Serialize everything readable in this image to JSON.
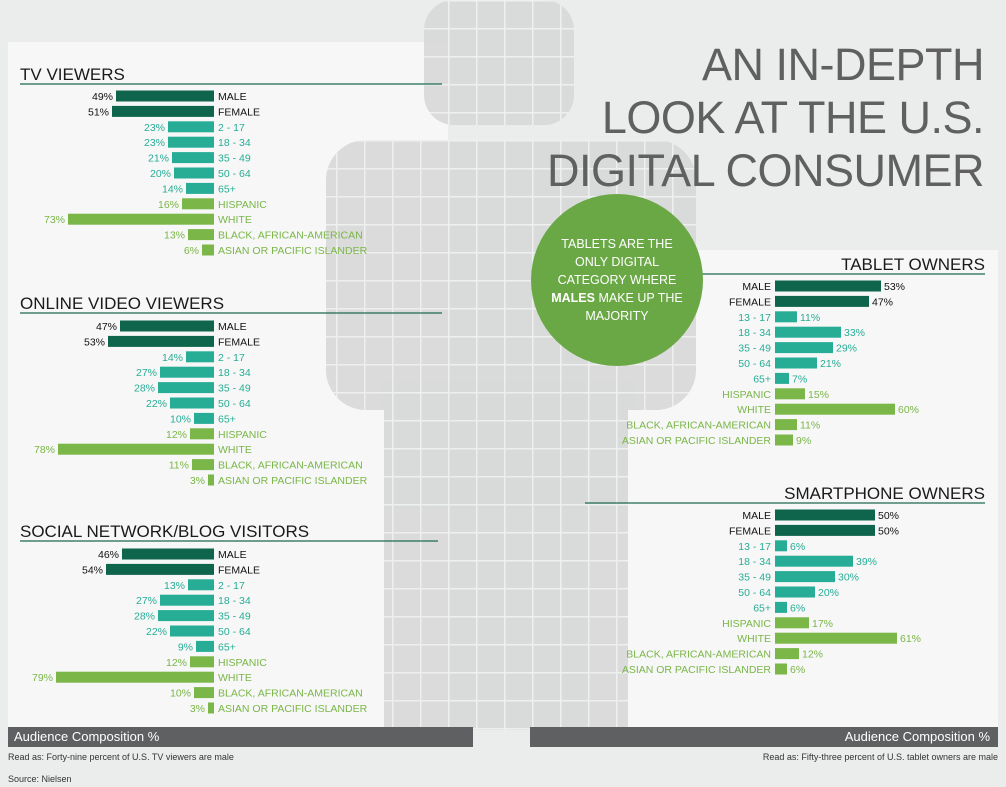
{
  "title_lines": [
    "AN IN-DEPTH",
    "LOOK AT THE U.S.",
    "DIGITAL CONSUMER"
  ],
  "callout": {
    "text_before": "TABLETS ARE THE ONLY DIGITAL CATEGORY WHERE",
    "emphasis": "MALES",
    "text_after": "MAKE UP THE MAJORITY"
  },
  "footer": {
    "left_label": "Audience Composition %",
    "right_label": "Audience Composition %",
    "left_note": "Read as: Forty-nine percent of U.S. TV viewers are male",
    "right_note": "Read as: Fifty-three percent of  U.S. tablet owners are male",
    "source": "Source: Nielsen"
  },
  "colors": {
    "gender": "#0f654c",
    "age": "#27ad96",
    "ethnicity": "#7ab648",
    "title": "#606060",
    "callout": "#6aa845"
  },
  "chart_data": [
    {
      "type": "bar",
      "title": "TV VIEWERS",
      "orientation": "left",
      "categories": [
        "MALE",
        "FEMALE",
        "2 - 17",
        "18 - 34",
        "35 - 49",
        "50 - 64",
        "65+",
        "HISPANIC",
        "WHITE",
        "BLACK, AFRICAN-AMERICAN",
        "ASIAN OR PACIFIC ISLANDER"
      ],
      "groups": [
        "gender",
        "gender",
        "age",
        "age",
        "age",
        "age",
        "age",
        "ethnicity",
        "ethnicity",
        "ethnicity",
        "ethnicity"
      ],
      "values": [
        49,
        51,
        23,
        23,
        21,
        20,
        14,
        16,
        73,
        13,
        6
      ],
      "unit": "%"
    },
    {
      "type": "bar",
      "title": "ONLINE VIDEO VIEWERS",
      "orientation": "left",
      "categories": [
        "MALE",
        "FEMALE",
        "2 - 17",
        "18 - 34",
        "35 - 49",
        "50 - 64",
        "65+",
        "HISPANIC",
        "WHITE",
        "BLACK, AFRICAN-AMERICAN",
        "ASIAN OR PACIFIC ISLANDER"
      ],
      "groups": [
        "gender",
        "gender",
        "age",
        "age",
        "age",
        "age",
        "age",
        "ethnicity",
        "ethnicity",
        "ethnicity",
        "ethnicity"
      ],
      "values": [
        47,
        53,
        14,
        27,
        28,
        22,
        10,
        12,
        78,
        11,
        3
      ],
      "unit": "%"
    },
    {
      "type": "bar",
      "title": "SOCIAL NETWORK/BLOG VISITORS",
      "orientation": "left",
      "categories": [
        "MALE",
        "FEMALE",
        "2 - 17",
        "18 - 34",
        "35 - 49",
        "50 - 64",
        "65+",
        "HISPANIC",
        "WHITE",
        "BLACK, AFRICAN-AMERICAN",
        "ASIAN OR PACIFIC ISLANDER"
      ],
      "groups": [
        "gender",
        "gender",
        "age",
        "age",
        "age",
        "age",
        "age",
        "ethnicity",
        "ethnicity",
        "ethnicity",
        "ethnicity"
      ],
      "values": [
        46,
        54,
        13,
        27,
        28,
        22,
        9,
        12,
        79,
        10,
        3
      ],
      "unit": "%"
    },
    {
      "type": "bar",
      "title": "TABLET OWNERS",
      "orientation": "right",
      "categories": [
        "MALE",
        "FEMALE",
        "13 - 17",
        "18 - 34",
        "35 - 49",
        "50 - 64",
        "65+",
        "HISPANIC",
        "WHITE",
        "BLACK, AFRICAN-AMERICAN",
        "ASIAN OR PACIFIC ISLANDER"
      ],
      "groups": [
        "gender",
        "gender",
        "age",
        "age",
        "age",
        "age",
        "age",
        "ethnicity",
        "ethnicity",
        "ethnicity",
        "ethnicity"
      ],
      "values": [
        53,
        47,
        11,
        33,
        29,
        21,
        7,
        15,
        60,
        11,
        9
      ],
      "unit": "%"
    },
    {
      "type": "bar",
      "title": "SMARTPHONE OWNERS",
      "orientation": "right",
      "categories": [
        "MALE",
        "FEMALE",
        "13 - 17",
        "18 - 34",
        "35 - 49",
        "50 - 64",
        "65+",
        "HISPANIC",
        "WHITE",
        "BLACK, AFRICAN-AMERICAN",
        "ASIAN OR PACIFIC ISLANDER"
      ],
      "groups": [
        "gender",
        "gender",
        "age",
        "age",
        "age",
        "age",
        "age",
        "ethnicity",
        "ethnicity",
        "ethnicity",
        "ethnicity"
      ],
      "values": [
        50,
        50,
        6,
        39,
        30,
        20,
        6,
        17,
        61,
        12,
        6
      ],
      "unit": "%"
    }
  ]
}
